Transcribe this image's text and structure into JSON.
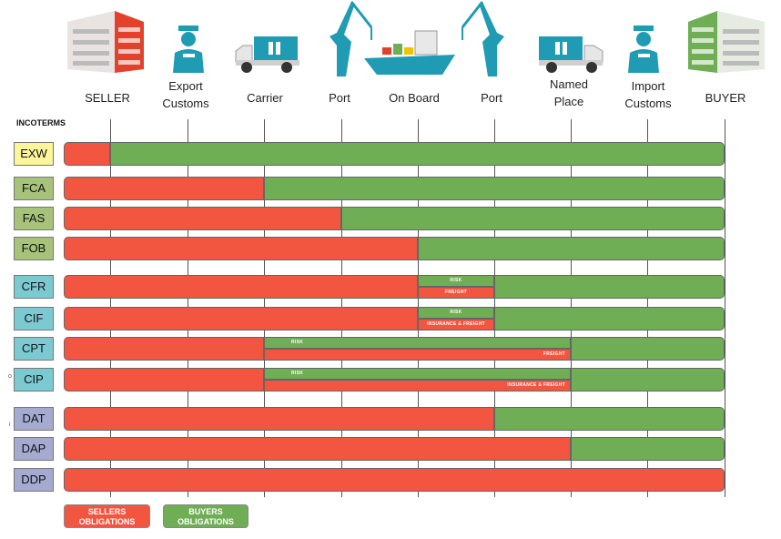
{
  "columns": [
    {
      "id": "seller",
      "label": "SELLER",
      "icon": "seller-building-icon"
    },
    {
      "id": "export_customs",
      "label": "Export\nCustoms",
      "icon": "customs-officer-icon"
    },
    {
      "id": "carrier",
      "label": "Carrier",
      "icon": "truck-icon"
    },
    {
      "id": "port_origin",
      "label": "Port",
      "icon": "port-crane-icon"
    },
    {
      "id": "on_board",
      "label": "On Board",
      "icon": "cargo-ship-icon"
    },
    {
      "id": "port_dest",
      "label": "Port",
      "icon": "port-crane-icon"
    },
    {
      "id": "named_place",
      "label": "Named\nPlace",
      "icon": "truck-icon"
    },
    {
      "id": "import_customs",
      "label": "Import\nCustoms",
      "icon": "customs-officer-icon"
    },
    {
      "id": "buyer",
      "label": "BUYER",
      "icon": "buyer-building-icon"
    }
  ],
  "incoterms_title": "INCOTERMS",
  "terms": [
    {
      "code": "EXW",
      "box_color": "#fcf59b",
      "seller_until": 0
    },
    {
      "code": "FCA",
      "box_color": "#a7c37a",
      "seller_until": 2
    },
    {
      "code": "FAS",
      "box_color": "#a7c37a",
      "seller_until": 3
    },
    {
      "code": "FOB",
      "box_color": "#a7c37a",
      "seller_until": 4
    },
    {
      "code": "CFR",
      "box_color": "#7ccad1",
      "seller_until": 4,
      "split_until": 5,
      "risk_label": "RISK",
      "cost_label": "FREIGHT"
    },
    {
      "code": "CIF",
      "box_color": "#7ccad1",
      "seller_until": 4,
      "split_until": 5,
      "risk_label": "RISK",
      "cost_label": "INSURANCE & FREIGHT"
    },
    {
      "code": "CPT",
      "box_color": "#7ccad1",
      "seller_until": 2,
      "split_until": 6,
      "risk_label": "RISK",
      "cost_label": "FREIGHT"
    },
    {
      "code": "CIP",
      "box_color": "#7ccad1",
      "seller_until": 2,
      "split_until": 6,
      "risk_label": "RISK",
      "cost_label": "INSURANCE & FREIGHT"
    },
    {
      "code": "DAT",
      "box_color": "#a5abd0",
      "seller_until": 5
    },
    {
      "code": "DAP",
      "box_color": "#a5abd0",
      "seller_until": 6
    },
    {
      "code": "DDP",
      "box_color": "#a5abd0",
      "seller_until": 8
    }
  ],
  "legend": {
    "sellers": "SELLERS\nOBLIGATIONS",
    "buyers": "BUYERS\nOBLIGATIONS"
  },
  "colors": {
    "seller_red": "#f25540",
    "buyer_green": "#6fae55",
    "icon_teal": "#1f9bb3"
  },
  "stray_marks": {
    "cip": "o",
    "dat": "i"
  }
}
